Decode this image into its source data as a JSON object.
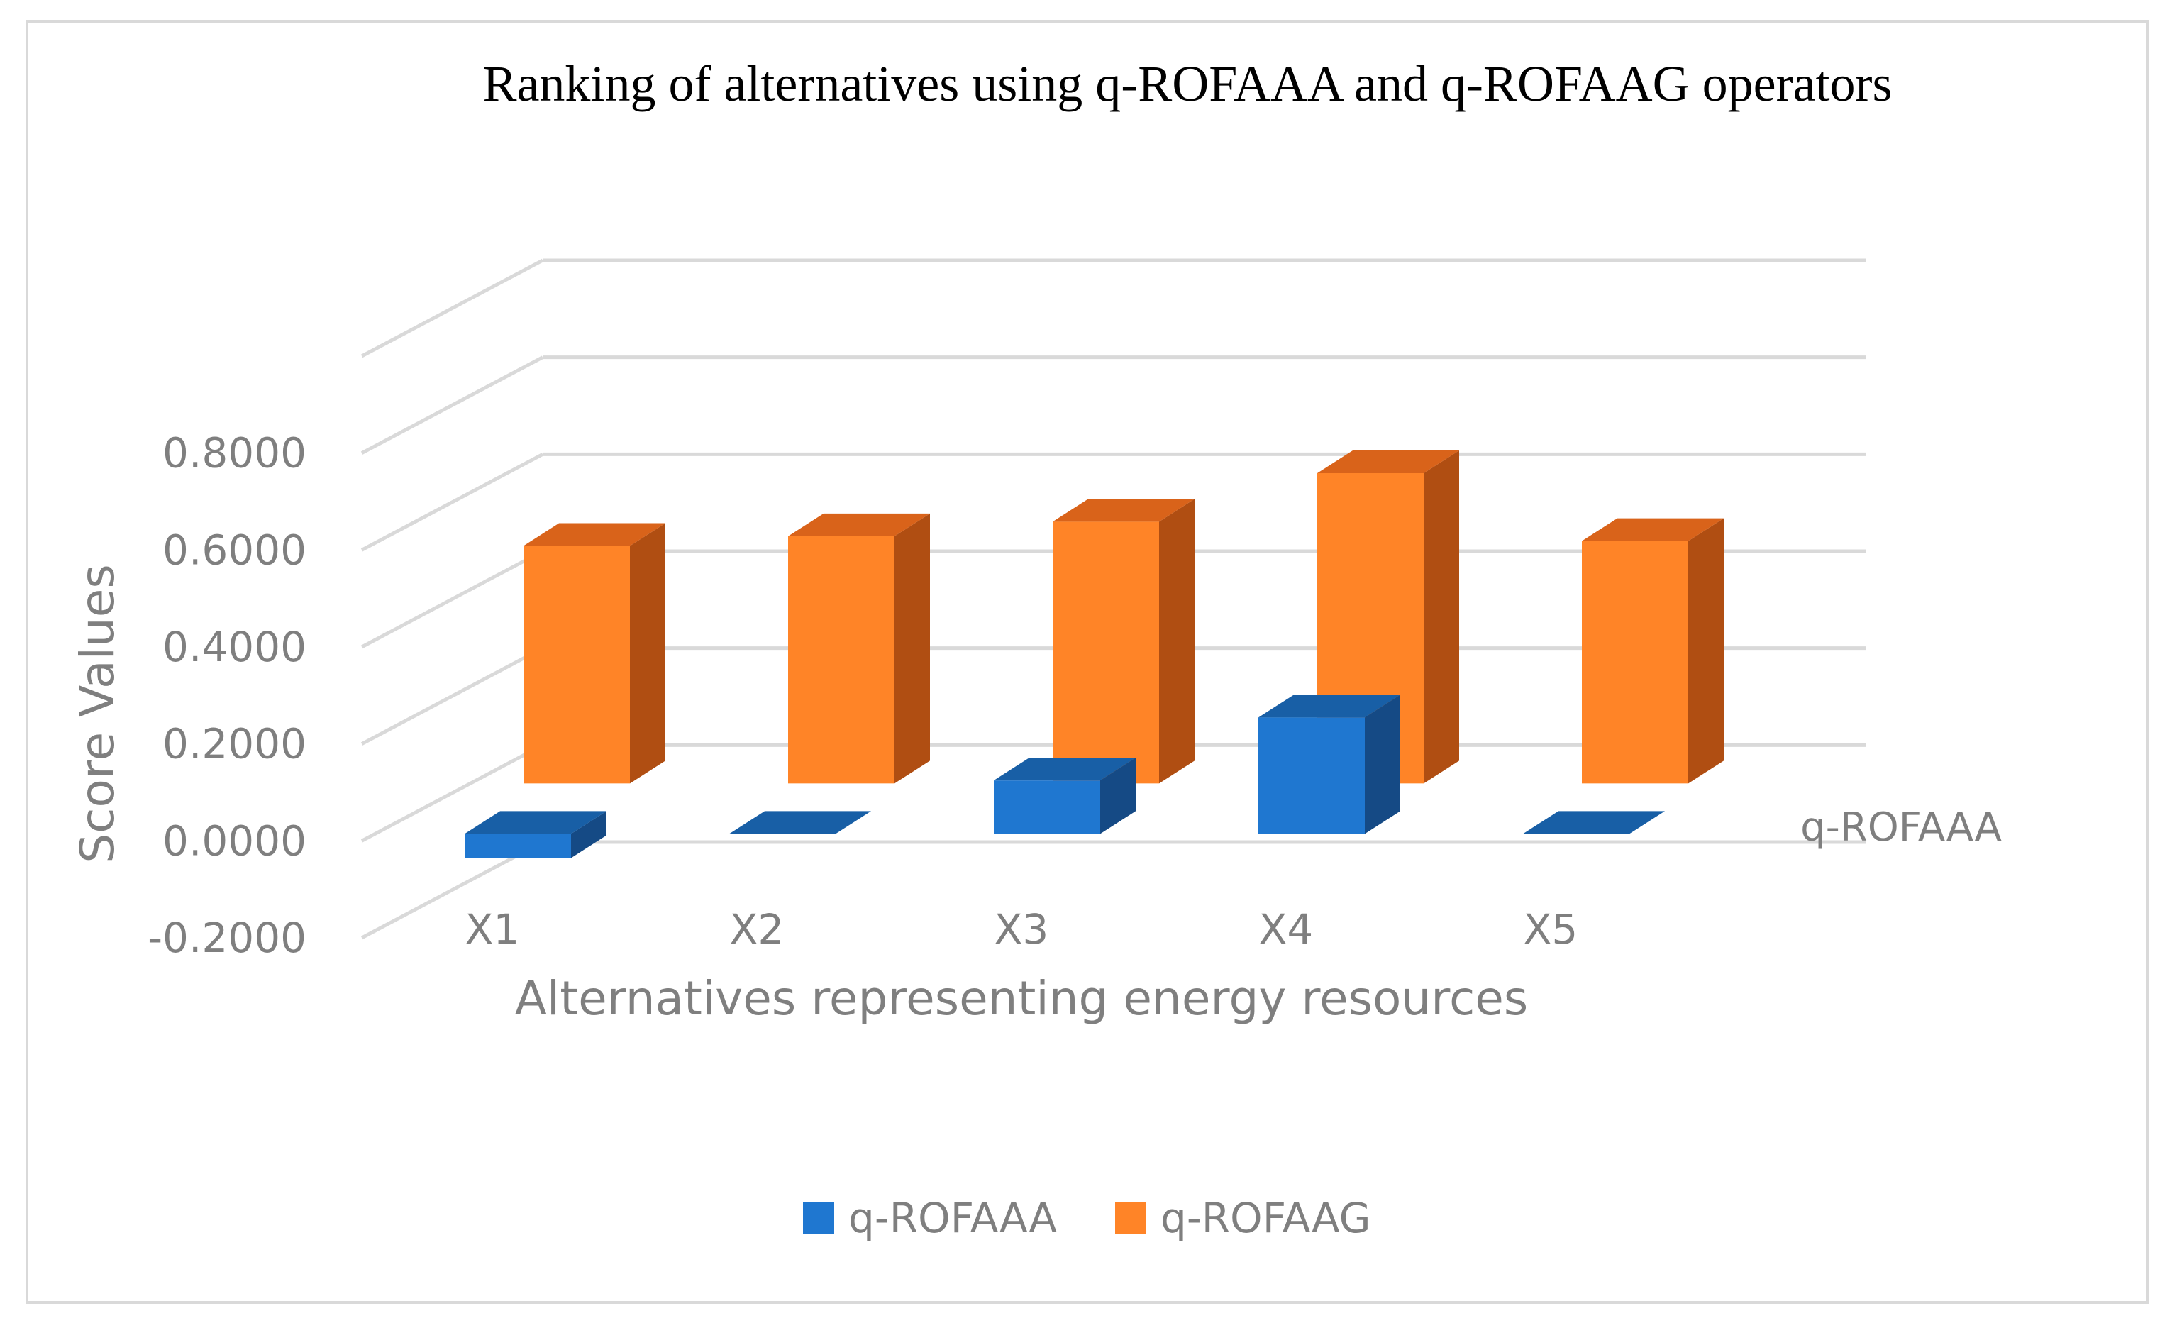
{
  "chart_data": {
    "type": "bar",
    "variant": "3d-column",
    "title": "Ranking of alternatives using q-ROFAAA and q-ROFAAG operators",
    "xlabel": "Alternatives representing energy resources",
    "ylabel": "Score Values",
    "categories": [
      "X1",
      "X2",
      "X3",
      "X4",
      "X5"
    ],
    "series": [
      {
        "name": "q-ROFAAA",
        "values": [
          -0.05,
          0.0,
          0.11,
          0.24,
          0.0
        ],
        "color": "#1f77d0",
        "top_color": "#185fa6",
        "side_color": "#154a85"
      },
      {
        "name": "q-ROFAAG",
        "values": [
          0.49,
          0.51,
          0.54,
          0.64,
          0.5
        ],
        "color": "#ff8427",
        "top_color": "#d9631a",
        "side_color": "#b04e12"
      }
    ],
    "ylim": [
      -0.2,
      1.0
    ],
    "yticks": [
      "-0.2000",
      "0.0000",
      "0.2000",
      "0.4000",
      "0.6000",
      "0.8000"
    ],
    "depth_axis_label": "q-ROFAAA",
    "legend_position": "bottom",
    "grid": true
  }
}
